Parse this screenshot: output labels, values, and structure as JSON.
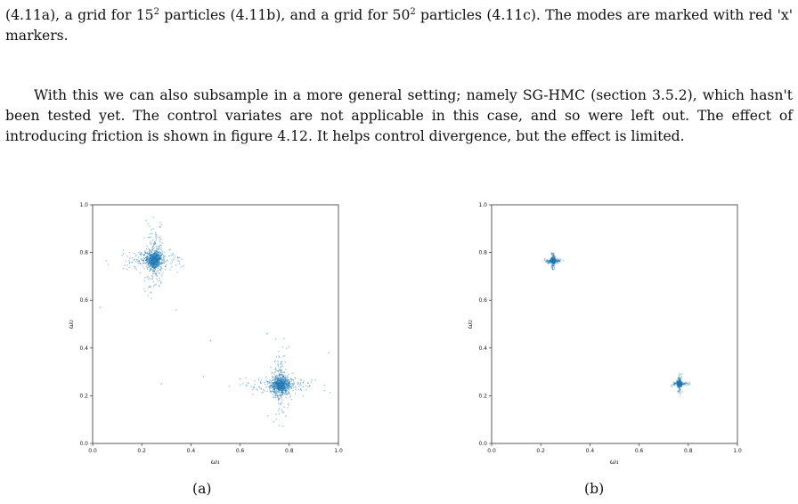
{
  "text": {
    "p1_a": "(4.11a), a grid for 15",
    "p1_sup1": "2",
    "p1_b": " particles (4.11b), and a grid for 50",
    "p1_sup2": "2",
    "p1_c": " particles (4.11c). The modes are marked with red 'x' markers.",
    "p2": "With this we can also subsample in a more general setting; namely SG-HMC (section 3.5.2), which hasn't been tested yet. The control variates are not applicable in this case, and so were left out. The effect of introducing friction is shown in figure 4.12. It helps control divergence, but the effect is limited."
  },
  "chart_data": [
    {
      "type": "scatter",
      "caption": "(a)",
      "xlabel": "ω₁",
      "ylabel": "ω₂",
      "xlim": [
        0.0,
        1.0
      ],
      "ylim": [
        0.0,
        1.0
      ],
      "xticks": [
        "0.0",
        "0.2",
        "0.4",
        "0.6",
        "0.8",
        "1.0"
      ],
      "yticks": [
        "0.0",
        "0.2",
        "0.4",
        "0.6",
        "0.8",
        "1.0"
      ],
      "color": "#1f77b4",
      "clusters": [
        {
          "center": [
            0.25,
            0.77
          ],
          "spread": 0.05,
          "count": 900
        },
        {
          "center": [
            0.765,
            0.245
          ],
          "spread": 0.05,
          "count": 900
        }
      ],
      "outliers": [
        [
          0.03,
          0.57
        ],
        [
          0.48,
          0.43
        ],
        [
          0.28,
          0.25
        ],
        [
          0.34,
          0.56
        ],
        [
          0.6,
          0.27
        ],
        [
          0.96,
          0.38
        ],
        [
          0.45,
          0.28
        ],
        [
          0.71,
          0.46
        ]
      ]
    },
    {
      "type": "scatter",
      "caption": "(b)",
      "xlabel": "ω₁",
      "ylabel": "ω₂",
      "xlim": [
        0.0,
        1.0
      ],
      "ylim": [
        0.0,
        1.0
      ],
      "xticks": [
        "0.0",
        "0.2",
        "0.4",
        "0.6",
        "0.8",
        "1.0"
      ],
      "yticks": [
        "0.0",
        "0.2",
        "0.4",
        "0.6",
        "0.8",
        "1.0"
      ],
      "color": "#1f77b4",
      "clusters": [
        {
          "center": [
            0.25,
            0.765
          ],
          "spread": 0.012,
          "count": 600
        },
        {
          "center": [
            0.765,
            0.25
          ],
          "spread": 0.012,
          "count": 600
        }
      ],
      "outliers": []
    }
  ]
}
